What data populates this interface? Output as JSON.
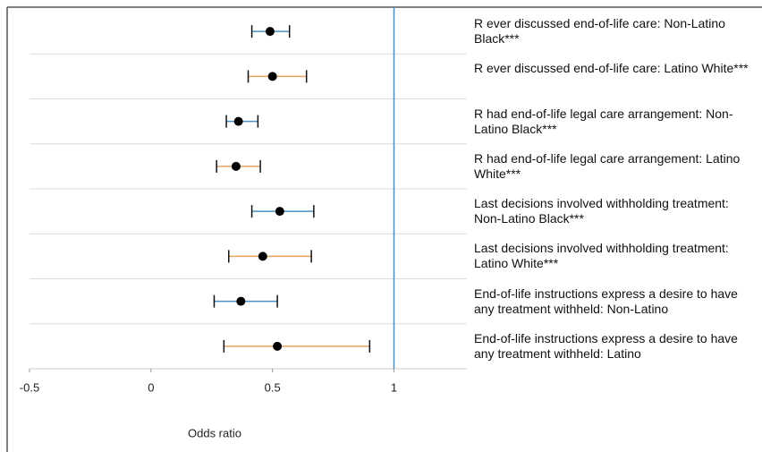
{
  "chart_data": {
    "type": "forest",
    "categories": [
      "R ever discussed end-of-life care: Non-Latino Black***",
      "R ever discussed end-of-life care: Latino White***",
      "R had end-of-life legal care arrangement: Non-Latino Black***",
      "R had end-of-life legal care arrangement: Latino White***",
      "Last decisions involved withholding treatment: Non-Latino Black***",
      "Last decisions involved withholding treatment: Latino White***",
      "End-of-life instructions express a desire to have any treatment withheld: Non-Latino",
      "End-of-life instructions express a desire to have any treatment withheld: Latino"
    ],
    "values": [
      0.49,
      0.5,
      0.36,
      0.35,
      0.53,
      0.46,
      0.37,
      0.52
    ],
    "lower": [
      0.415,
      0.4,
      0.31,
      0.27,
      0.415,
      0.32,
      0.26,
      0.3
    ],
    "upper": [
      0.57,
      0.64,
      0.44,
      0.45,
      0.67,
      0.66,
      0.52,
      0.9
    ],
    "colors": [
      "#4a90c4",
      "#e8a060",
      "#4a90c4",
      "#e8a060",
      "#4a90c4",
      "#e8a060",
      "#4a90c4",
      "#e8a060"
    ],
    "xlim": [
      -0.5,
      1.3
    ],
    "xticks": [
      -0.5,
      0,
      0.5,
      1
    ],
    "reference_line": 1,
    "xlabel": "Odds ratio",
    "grid": true
  }
}
